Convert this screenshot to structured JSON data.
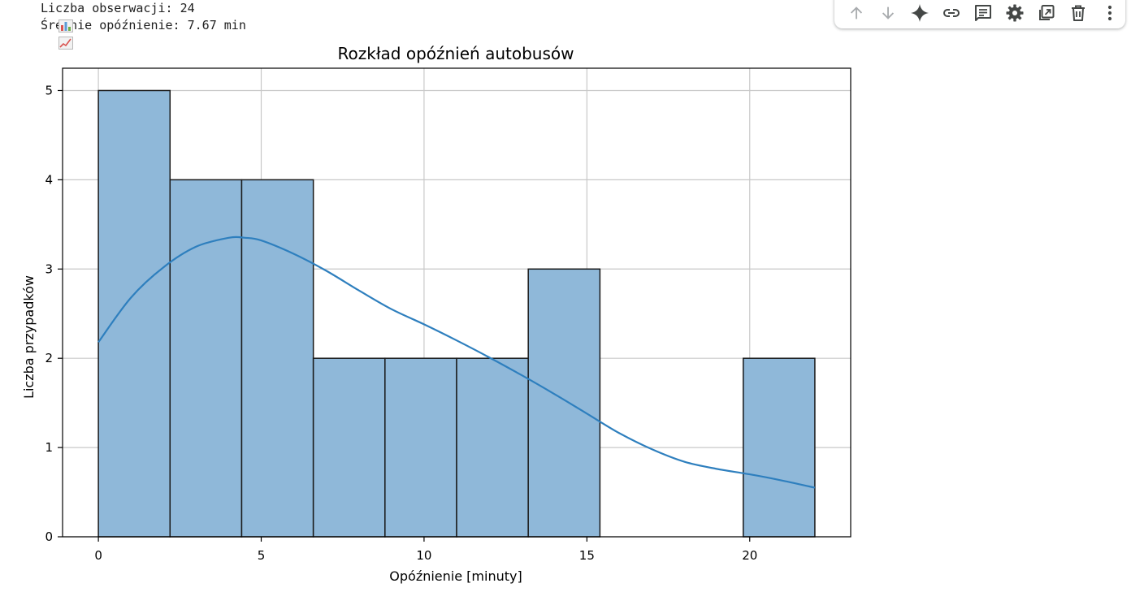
{
  "output": {
    "lines": [
      {
        "icon": "bar-chart-emoji-icon",
        "text": "Liczba obserwacji: 24"
      },
      {
        "icon": "trend-chart-emoji-icon",
        "text": "Średnie opóźnienie: 7.67 min"
      }
    ]
  },
  "toolbar": {
    "buttons": [
      {
        "name": "move-cell-up-button",
        "icon": "arrow-up-icon",
        "enabled": false
      },
      {
        "name": "move-cell-down-button",
        "icon": "arrow-down-icon",
        "enabled": false
      },
      {
        "name": "gemini-button",
        "icon": "sparkle-icon",
        "enabled": true
      },
      {
        "name": "copy-link-button",
        "icon": "link-icon",
        "enabled": true
      },
      {
        "name": "add-comment-button",
        "icon": "comment-icon",
        "enabled": true
      },
      {
        "name": "cell-settings-button",
        "icon": "gear-icon",
        "enabled": true
      },
      {
        "name": "mirror-cell-button",
        "icon": "mirror-tab-icon",
        "enabled": true
      },
      {
        "name": "delete-cell-button",
        "icon": "trash-icon",
        "enabled": true
      },
      {
        "name": "more-actions-button",
        "icon": "more-vert-icon",
        "enabled": true
      }
    ],
    "icon_color": "#444746",
    "disabled_icon_color": "#a8abae"
  },
  "chart_data": {
    "type": "bar",
    "title": "Rozkład opóźnień autobusów",
    "xlabel": "Opóźnienie [minuty]",
    "ylabel": "Liczba przypadków",
    "xlim": [
      -1.1,
      23.1
    ],
    "ylim": [
      0,
      5.25
    ],
    "xticks": [
      0,
      5,
      10,
      15,
      20
    ],
    "yticks": [
      0,
      1,
      2,
      3,
      4,
      5
    ],
    "grid": true,
    "bins": [
      {
        "x0": 0.0,
        "x1": 2.2,
        "count": 5
      },
      {
        "x0": 2.2,
        "x1": 4.4,
        "count": 4
      },
      {
        "x0": 4.4,
        "x1": 6.6,
        "count": 4
      },
      {
        "x0": 6.6,
        "x1": 8.8,
        "count": 2
      },
      {
        "x0": 8.8,
        "x1": 11.0,
        "count": 2
      },
      {
        "x0": 11.0,
        "x1": 13.2,
        "count": 2
      },
      {
        "x0": 13.2,
        "x1": 15.4,
        "count": 3
      },
      {
        "x0": 15.4,
        "x1": 17.6,
        "count": 0
      },
      {
        "x0": 17.6,
        "x1": 19.8,
        "count": 0
      },
      {
        "x0": 19.8,
        "x1": 22.0,
        "count": 2
      }
    ],
    "kde": {
      "x": [
        0,
        1,
        2,
        3,
        4,
        4.5,
        5,
        6,
        7,
        8,
        9,
        10,
        11,
        12,
        13,
        14,
        15,
        16,
        17,
        18,
        19,
        20,
        21,
        22
      ],
      "y": [
        2.18,
        2.68,
        3.02,
        3.25,
        3.35,
        3.35,
        3.32,
        3.17,
        2.98,
        2.76,
        2.55,
        2.38,
        2.2,
        2.01,
        1.81,
        1.6,
        1.38,
        1.16,
        0.98,
        0.84,
        0.76,
        0.7,
        0.63,
        0.55
      ]
    },
    "colors": {
      "bar_fill": "#8fb8d9",
      "bar_edge": "#1a1a1a",
      "kde_line": "#2e7fbe",
      "grid": "#c8c8c8",
      "axis": "#000000"
    }
  }
}
